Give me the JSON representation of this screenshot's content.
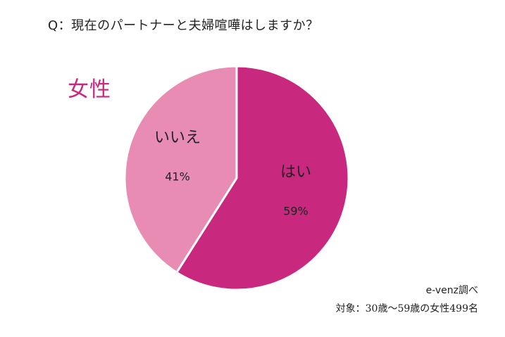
{
  "colors": {
    "yes": "#c8287e",
    "no": "#e88cb3",
    "accent": "#c8287e",
    "text": "#222222"
  },
  "title": "Q：現在のパートナーと夫婦喧嘩はしますか？",
  "group_label": "女性",
  "credit": "e-venz調べ",
  "subject": "対象：30歳～59歳の女性499名",
  "chart_data": {
    "type": "pie",
    "title": "Q：現在のパートナーと夫婦喧嘩はしますか？",
    "slices": [
      {
        "label": "はい",
        "value": 59,
        "value_label": "59%",
        "color": "#c8287e"
      },
      {
        "label": "いいえ",
        "value": 41,
        "value_label": "41%",
        "color": "#e88cb3"
      }
    ],
    "start": "12 o'clock",
    "direction": "clockwise",
    "legend": "none",
    "data_labels": "inside slices"
  }
}
